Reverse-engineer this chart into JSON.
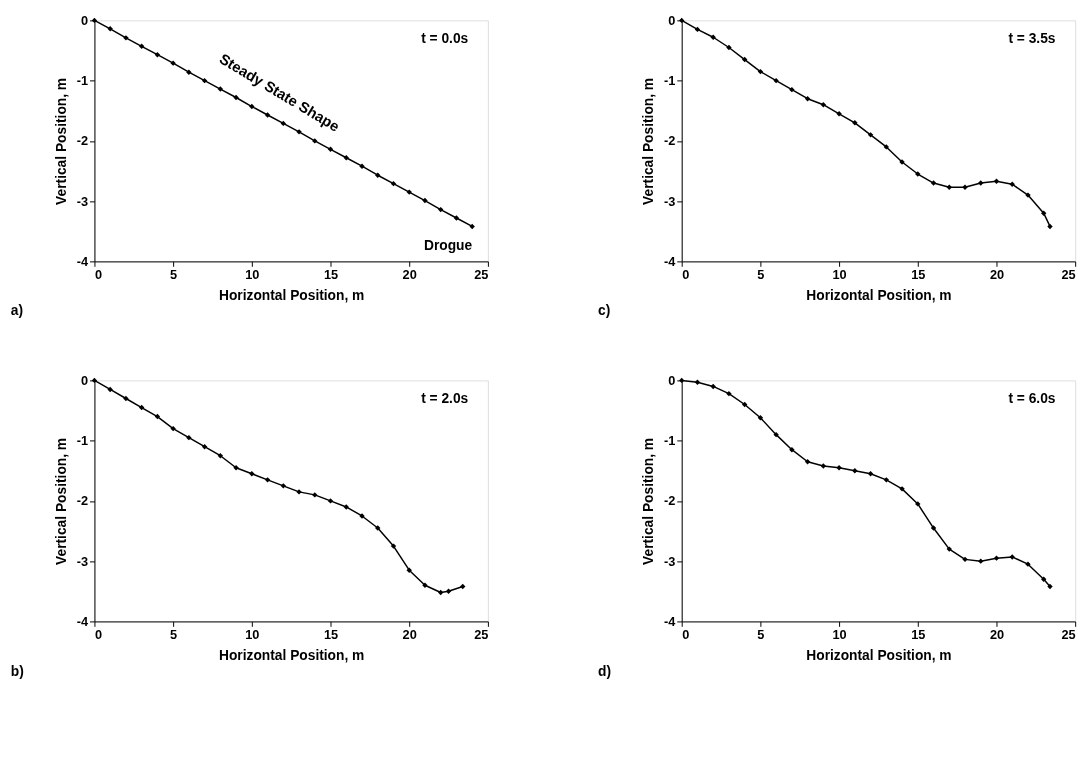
{
  "chart_data": [
    {
      "type": "line",
      "xlabel": "Horizontal Position, m",
      "ylabel": "Vertical Position, m",
      "xlim": [
        0,
        25
      ],
      "ylim": [
        -4,
        0
      ],
      "xticks": [
        0,
        5,
        10,
        15,
        20,
        25
      ],
      "yticks": [
        -4,
        -3,
        -2,
        -1,
        0
      ],
      "grid": false,
      "legend": false,
      "marker": "diamond",
      "line_style": "solid",
      "annotations": [
        "t = 0.0s",
        "a)",
        "Steady State Shape",
        {
          "text": "Drogue",
          "x": 24,
          "y": -3.42
        }
      ],
      "series": [
        {
          "color": "#000000",
          "x": [
            0,
            1,
            2,
            3,
            4,
            5,
            6,
            7,
            8,
            9,
            10,
            11,
            12,
            13,
            14,
            15,
            16,
            17,
            18,
            19,
            20,
            21,
            22,
            23,
            24
          ],
          "values": [
            0,
            -0.14,
            -0.29,
            -0.43,
            -0.57,
            -0.71,
            -0.86,
            -1.0,
            -1.14,
            -1.28,
            -1.43,
            -1.57,
            -1.71,
            -1.85,
            -2.0,
            -2.14,
            -2.28,
            -2.42,
            -2.57,
            -2.71,
            -2.85,
            -2.99,
            -3.14,
            -3.28,
            -3.42
          ]
        }
      ]
    },
    {
      "type": "line",
      "xlabel": "Horizontal Position, m",
      "ylabel": "Vertical Position, m",
      "xlim": [
        0,
        25
      ],
      "ylim": [
        -4,
        0
      ],
      "xticks": [
        0,
        5,
        10,
        15,
        20,
        25
      ],
      "yticks": [
        -4,
        -3,
        -2,
        -1,
        0
      ],
      "grid": false,
      "legend": false,
      "marker": "diamond",
      "line_style": "solid",
      "annotations": [
        "t = 3.5s",
        "c)"
      ],
      "series": [
        {
          "color": "#000000",
          "x": [
            0,
            1,
            2,
            3,
            4,
            5,
            6,
            7,
            8,
            9,
            10,
            11,
            12,
            13,
            14,
            15,
            16,
            17,
            18,
            19,
            20,
            21,
            22,
            23,
            23.4
          ],
          "values": [
            0,
            -0.15,
            -0.28,
            -0.45,
            -0.65,
            -0.85,
            -1.0,
            -1.15,
            -1.3,
            -1.4,
            -1.55,
            -1.7,
            -1.9,
            -2.1,
            -2.35,
            -2.55,
            -2.7,
            -2.77,
            -2.77,
            -2.7,
            -2.67,
            -2.72,
            -2.9,
            -3.2,
            -3.42
          ]
        }
      ]
    },
    {
      "type": "line",
      "xlabel": "Horizontal Position, m",
      "ylabel": "Vertical Position, m",
      "xlim": [
        0,
        25
      ],
      "ylim": [
        -4,
        0
      ],
      "xticks": [
        0,
        5,
        10,
        15,
        20,
        25
      ],
      "yticks": [
        -4,
        -3,
        -2,
        -1,
        0
      ],
      "grid": false,
      "legend": false,
      "marker": "diamond",
      "line_style": "solid",
      "annotations": [
        "t = 2.0s",
        "b)"
      ],
      "series": [
        {
          "color": "#000000",
          "x": [
            0,
            1,
            2,
            3,
            4,
            5,
            6,
            7,
            8,
            9,
            10,
            11,
            12,
            13,
            14,
            15,
            16,
            17,
            18,
            19,
            20,
            21,
            22,
            22.5,
            23.4
          ],
          "values": [
            0,
            -0.15,
            -0.3,
            -0.45,
            -0.6,
            -0.8,
            -0.95,
            -1.1,
            -1.25,
            -1.45,
            -1.55,
            -1.65,
            -1.75,
            -1.85,
            -1.9,
            -2.0,
            -2.1,
            -2.25,
            -2.45,
            -2.75,
            -3.15,
            -3.4,
            -3.52,
            -3.5,
            -3.42
          ]
        }
      ]
    },
    {
      "type": "line",
      "xlabel": "Horizontal Position, m",
      "ylabel": "Vertical Position, m",
      "xlim": [
        0,
        25
      ],
      "ylim": [
        -4,
        0
      ],
      "xticks": [
        0,
        5,
        10,
        15,
        20,
        25
      ],
      "yticks": [
        -4,
        -3,
        -2,
        -1,
        0
      ],
      "grid": false,
      "legend": false,
      "marker": "diamond",
      "line_style": "solid",
      "annotations": [
        "t = 6.0s",
        "d)"
      ],
      "series": [
        {
          "color": "#000000",
          "x": [
            0,
            1,
            2,
            3,
            4,
            5,
            6,
            7,
            8,
            9,
            10,
            11,
            12,
            13,
            14,
            15,
            16,
            17,
            18,
            19,
            20,
            21,
            22,
            23,
            23.4
          ],
          "values": [
            0,
            -0.03,
            -0.1,
            -0.22,
            -0.4,
            -0.62,
            -0.9,
            -1.15,
            -1.35,
            -1.42,
            -1.45,
            -1.5,
            -1.55,
            -1.65,
            -1.8,
            -2.05,
            -2.45,
            -2.8,
            -2.97,
            -3.0,
            -2.95,
            -2.93,
            -3.05,
            -3.3,
            -3.42
          ]
        }
      ]
    }
  ]
}
